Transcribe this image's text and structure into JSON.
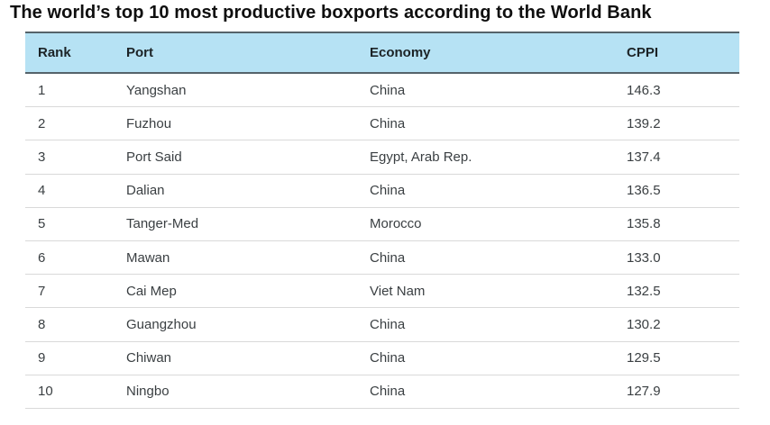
{
  "title": "The world’s top 10 most productive boxports according to the World Bank",
  "table": {
    "headers": [
      "Rank",
      "Port",
      "Economy",
      "CPPI"
    ],
    "rows": [
      {
        "rank": "1",
        "port": "Yangshan",
        "economy": "China",
        "cppi": "146.3"
      },
      {
        "rank": "2",
        "port": "Fuzhou",
        "economy": "China",
        "cppi": "139.2"
      },
      {
        "rank": "3",
        "port": "Port Said",
        "economy": "Egypt, Arab Rep.",
        "cppi": "137.4"
      },
      {
        "rank": "4",
        "port": "Dalian",
        "economy": "China",
        "cppi": "136.5"
      },
      {
        "rank": "5",
        "port": "Tanger-Med",
        "economy": "Morocco",
        "cppi": "135.8"
      },
      {
        "rank": "6",
        "port": "Mawan",
        "economy": "China",
        "cppi": "133.0"
      },
      {
        "rank": "7",
        "port": "Cai Mep",
        "economy": "Viet Nam",
        "cppi": "132.5"
      },
      {
        "rank": "8",
        "port": "Guangzhou",
        "economy": "China",
        "cppi": "130.2"
      },
      {
        "rank": "9",
        "port": "Chiwan",
        "economy": "China",
        "cppi": "129.5"
      },
      {
        "rank": "10",
        "port": "Ningbo",
        "economy": "China",
        "cppi": "127.9"
      }
    ]
  },
  "colors": {
    "header_bg": "#b6e2f4",
    "border_dark": "#55636a",
    "row_divider": "#d9d9d9",
    "title_text": "#0f0f0f",
    "header_text": "#1c2326",
    "body_text": "#3a3f42",
    "page_bg": "#ffffff"
  },
  "chart_data": {
    "type": "table",
    "title": "The world’s top 10 most productive boxports according to the World Bank",
    "columns": [
      "Rank",
      "Port",
      "Economy",
      "CPPI"
    ],
    "rows": [
      [
        1,
        "Yangshan",
        "China",
        146.3
      ],
      [
        2,
        "Fuzhou",
        "China",
        139.2
      ],
      [
        3,
        "Port Said",
        "Egypt, Arab Rep.",
        137.4
      ],
      [
        4,
        "Dalian",
        "China",
        136.5
      ],
      [
        5,
        "Tanger-Med",
        "Morocco",
        135.8
      ],
      [
        6,
        "Mawan",
        "China",
        133.0
      ],
      [
        7,
        "Cai Mep",
        "Viet Nam",
        132.5
      ],
      [
        8,
        "Guangzhou",
        "China",
        130.2
      ],
      [
        9,
        "Chiwan",
        "China",
        129.5
      ],
      [
        10,
        "Ningbo",
        "China",
        127.9
      ]
    ]
  }
}
